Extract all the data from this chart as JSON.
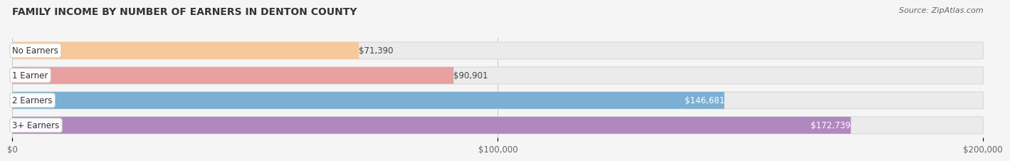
{
  "title": "FAMILY INCOME BY NUMBER OF EARNERS IN DENTON COUNTY",
  "source": "Source: ZipAtlas.com",
  "categories": [
    "No Earners",
    "1 Earner",
    "2 Earners",
    "3+ Earners"
  ],
  "values": [
    71390,
    90901,
    146681,
    172739
  ],
  "labels": [
    "$71,390",
    "$90,901",
    "$146,681",
    "$172,739"
  ],
  "bar_colors": [
    "#f5c99a",
    "#e8a0a0",
    "#7bafd4",
    "#b088bf"
  ],
  "label_colors": [
    "#555555",
    "#555555",
    "#ffffff",
    "#ffffff"
  ],
  "xmax": 200000,
  "xticks": [
    0,
    100000,
    200000
  ],
  "xtick_labels": [
    "$0",
    "$100,000",
    "$200,000"
  ],
  "background_color": "#f5f5f5",
  "bar_bg_color": "#ebebeb",
  "title_fontsize": 10,
  "source_fontsize": 8,
  "tick_fontsize": 8.5,
  "bar_label_fontsize": 8.5,
  "category_fontsize": 8.5
}
